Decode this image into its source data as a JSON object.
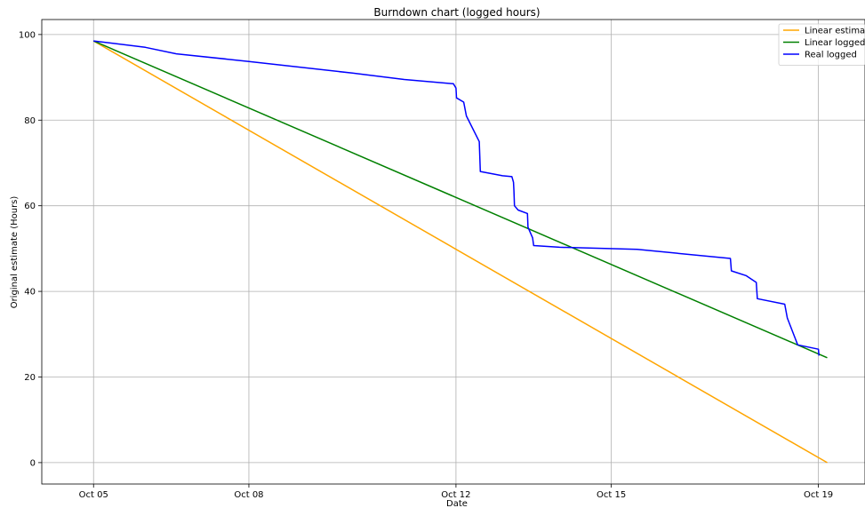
{
  "chart_data": {
    "type": "line",
    "title": "Burndown chart (logged hours)",
    "xlabel": "Date",
    "ylabel": "Original estimate (Hours)",
    "x_axis": "dates (day of October)",
    "xlim": [
      4.0,
      19.9
    ],
    "ylim": [
      -5,
      103.5
    ],
    "grid": true,
    "legend_position": "top-right",
    "x_ticks": [
      {
        "value": 5,
        "label": "Oct 05"
      },
      {
        "value": 8,
        "label": "Oct 08"
      },
      {
        "value": 12,
        "label": "Oct 12"
      },
      {
        "value": 15,
        "label": "Oct 15"
      },
      {
        "value": 19,
        "label": "Oct 19"
      }
    ],
    "y_ticks": [
      0,
      20,
      40,
      60,
      80,
      100
    ],
    "series": [
      {
        "name": "Linear estimate",
        "color": "#ffa500",
        "points": [
          [
            5.0,
            98.5
          ],
          [
            19.17,
            0.0
          ]
        ]
      },
      {
        "name": "Linear logged",
        "color": "#008000",
        "points": [
          [
            5.0,
            98.5
          ],
          [
            19.17,
            24.5
          ]
        ]
      },
      {
        "name": "Real logged",
        "color": "#0000ff",
        "points": [
          [
            5.0,
            98.5
          ],
          [
            6.0,
            97.0
          ],
          [
            6.6,
            95.5
          ],
          [
            8.0,
            93.7
          ],
          [
            10.0,
            91.0
          ],
          [
            11.0,
            89.5
          ],
          [
            11.95,
            88.5
          ],
          [
            12.0,
            87.5
          ],
          [
            12.01,
            85.2
          ],
          [
            12.15,
            84.2
          ],
          [
            12.2,
            81.0
          ],
          [
            12.45,
            75.0
          ],
          [
            12.47,
            68.0
          ],
          [
            12.9,
            67.0
          ],
          [
            13.08,
            66.8
          ],
          [
            13.11,
            65.5
          ],
          [
            13.12,
            63.5
          ],
          [
            13.13,
            60.0
          ],
          [
            13.2,
            59.0
          ],
          [
            13.38,
            58.2
          ],
          [
            13.39,
            55.0
          ],
          [
            13.48,
            52.5
          ],
          [
            13.5,
            50.7
          ],
          [
            14.0,
            50.3
          ],
          [
            15.5,
            49.8
          ],
          [
            17.3,
            47.7
          ],
          [
            17.32,
            44.8
          ],
          [
            17.6,
            43.7
          ],
          [
            17.8,
            42.1
          ],
          [
            17.82,
            38.3
          ],
          [
            18.35,
            37.0
          ],
          [
            18.4,
            33.8
          ],
          [
            18.6,
            27.5
          ],
          [
            19.0,
            26.5
          ],
          [
            19.01,
            25.0
          ]
        ]
      }
    ]
  }
}
